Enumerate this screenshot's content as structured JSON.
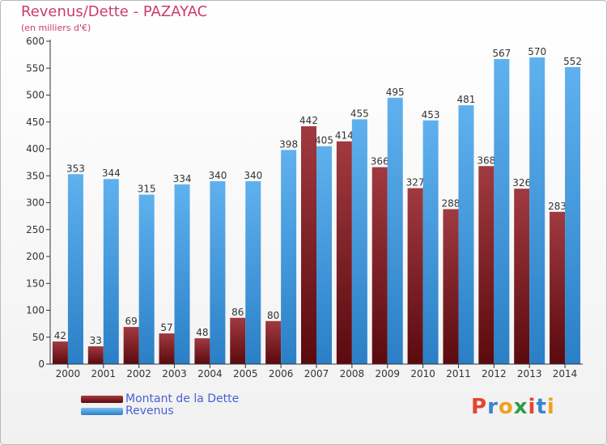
{
  "title": "Revenus/Dette - PAZAYAC",
  "subtitle": "(en milliers d'€)",
  "chart_data": {
    "type": "bar",
    "categories": [
      "2000",
      "2001",
      "2002",
      "2003",
      "2004",
      "2005",
      "2006",
      "2007",
      "2008",
      "2009",
      "2010",
      "2011",
      "2012",
      "2013",
      "2014"
    ],
    "series": [
      {
        "name": "Montant de la Dette",
        "color": "#7a1f24",
        "values": [
          42,
          33,
          69,
          57,
          48,
          86,
          80,
          442,
          414,
          366,
          327,
          288,
          368,
          326,
          283
        ]
      },
      {
        "name": "Revenus",
        "color": "#3d9be0",
        "values": [
          353,
          344,
          315,
          334,
          340,
          340,
          398,
          405,
          455,
          495,
          453,
          481,
          567,
          570,
          552
        ]
      }
    ],
    "ylim": [
      0,
      600
    ],
    "yticks": [
      0,
      50,
      100,
      150,
      200,
      250,
      300,
      350,
      400,
      450,
      500,
      550,
      600
    ],
    "grid": false,
    "legend_position": "bottom-left"
  },
  "legend": [
    {
      "label": "Montant de la Dette",
      "color": "#7a1f24"
    },
    {
      "label": "Revenus",
      "color": "#3d9be0"
    }
  ],
  "logo": {
    "letters": [
      "P",
      "r",
      "o",
      "x",
      "i",
      "t",
      "i"
    ],
    "colors": [
      "#e6442e",
      "#3a84d4",
      "#f2a01c",
      "#2e9e4d",
      "#e6442e",
      "#3a84d4",
      "#f2a01c"
    ]
  }
}
